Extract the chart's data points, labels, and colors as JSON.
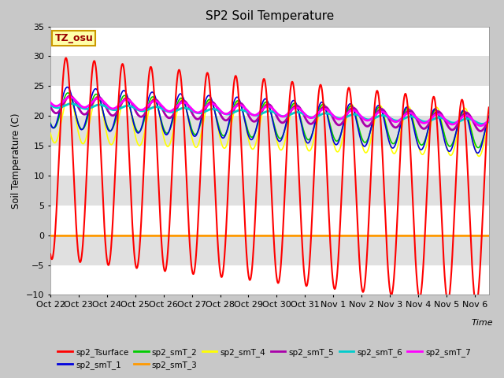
{
  "title": "SP2 Soil Temperature",
  "ylabel": "Soil Temperature (C)",
  "xlabel": "Time",
  "xlim": [
    0,
    15.5
  ],
  "ylim": [
    -10,
    35
  ],
  "yticks": [
    -10,
    -5,
    0,
    5,
    10,
    15,
    20,
    25,
    30,
    35
  ],
  "xtick_labels": [
    "Oct 22",
    "Oct 23",
    "Oct 24",
    "Oct 25",
    "Oct 26",
    "Oct 27",
    "Oct 28",
    "Oct 29",
    "Oct 30",
    "Oct 31",
    "Nov 1",
    "Nov 2",
    "Nov 3",
    "Nov 4",
    "Nov 5",
    "Nov 6"
  ],
  "tz_label": "TZ_osu",
  "series_colors": {
    "sp2_Tsurface": "#ff0000",
    "sp2_smT_1": "#0000dd",
    "sp2_smT_2": "#00cc00",
    "sp2_smT_3": "#ff9900",
    "sp2_smT_4": "#ffff00",
    "sp2_smT_5": "#aa00aa",
    "sp2_smT_6": "#00cccc",
    "sp2_smT_7": "#ff00ff"
  }
}
